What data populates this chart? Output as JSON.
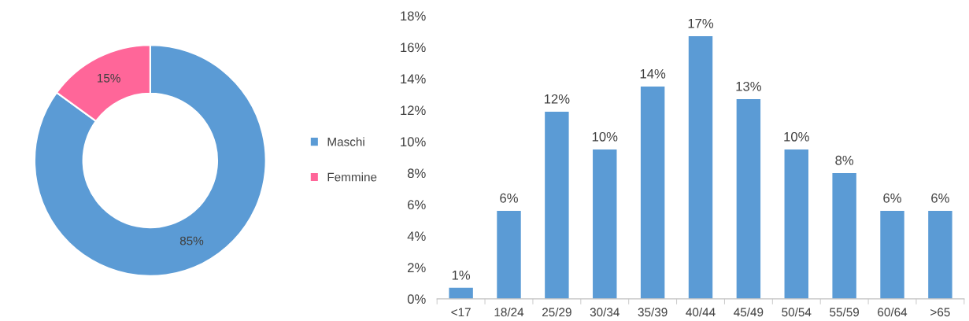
{
  "chart_data": [
    {
      "type": "donut",
      "categories": [
        "Maschi",
        "Femmine"
      ],
      "values": [
        85,
        15
      ],
      "colors": [
        "#5b9bd5",
        "#ff6699"
      ],
      "value_labels": [
        "85%",
        "15%"
      ],
      "legend": "right"
    },
    {
      "type": "bar",
      "categories": [
        "<17",
        "18/24",
        "25/29",
        "30/34",
        "35/39",
        "40/44",
        "45/49",
        "50/54",
        "55/59",
        "60/64",
        ">65"
      ],
      "values": [
        0.7,
        5.6,
        11.9,
        9.5,
        13.5,
        16.7,
        12.7,
        9.5,
        8.0,
        5.6,
        5.6
      ],
      "color": "#5b9bd5",
      "value_labels": [
        "1%",
        "6%",
        "12%",
        "10%",
        "14%",
        "17%",
        "13%",
        "10%",
        "8%",
        "6%",
        "6%"
      ],
      "ylim": [
        0,
        18
      ],
      "yticks": [
        {
          "value": 0,
          "label": "0%"
        },
        {
          "value": 2,
          "label": "2%"
        },
        {
          "value": 4,
          "label": "4%"
        },
        {
          "value": 6,
          "label": "6%"
        },
        {
          "value": 8,
          "label": "8%"
        },
        {
          "value": 10,
          "label": "10%"
        },
        {
          "value": 12,
          "label": "12%"
        },
        {
          "value": 14,
          "label": "14%"
        },
        {
          "value": 16,
          "label": "16%"
        },
        {
          "value": 18,
          "label": "18%"
        }
      ],
      "grid": false,
      "legend": false
    }
  ]
}
